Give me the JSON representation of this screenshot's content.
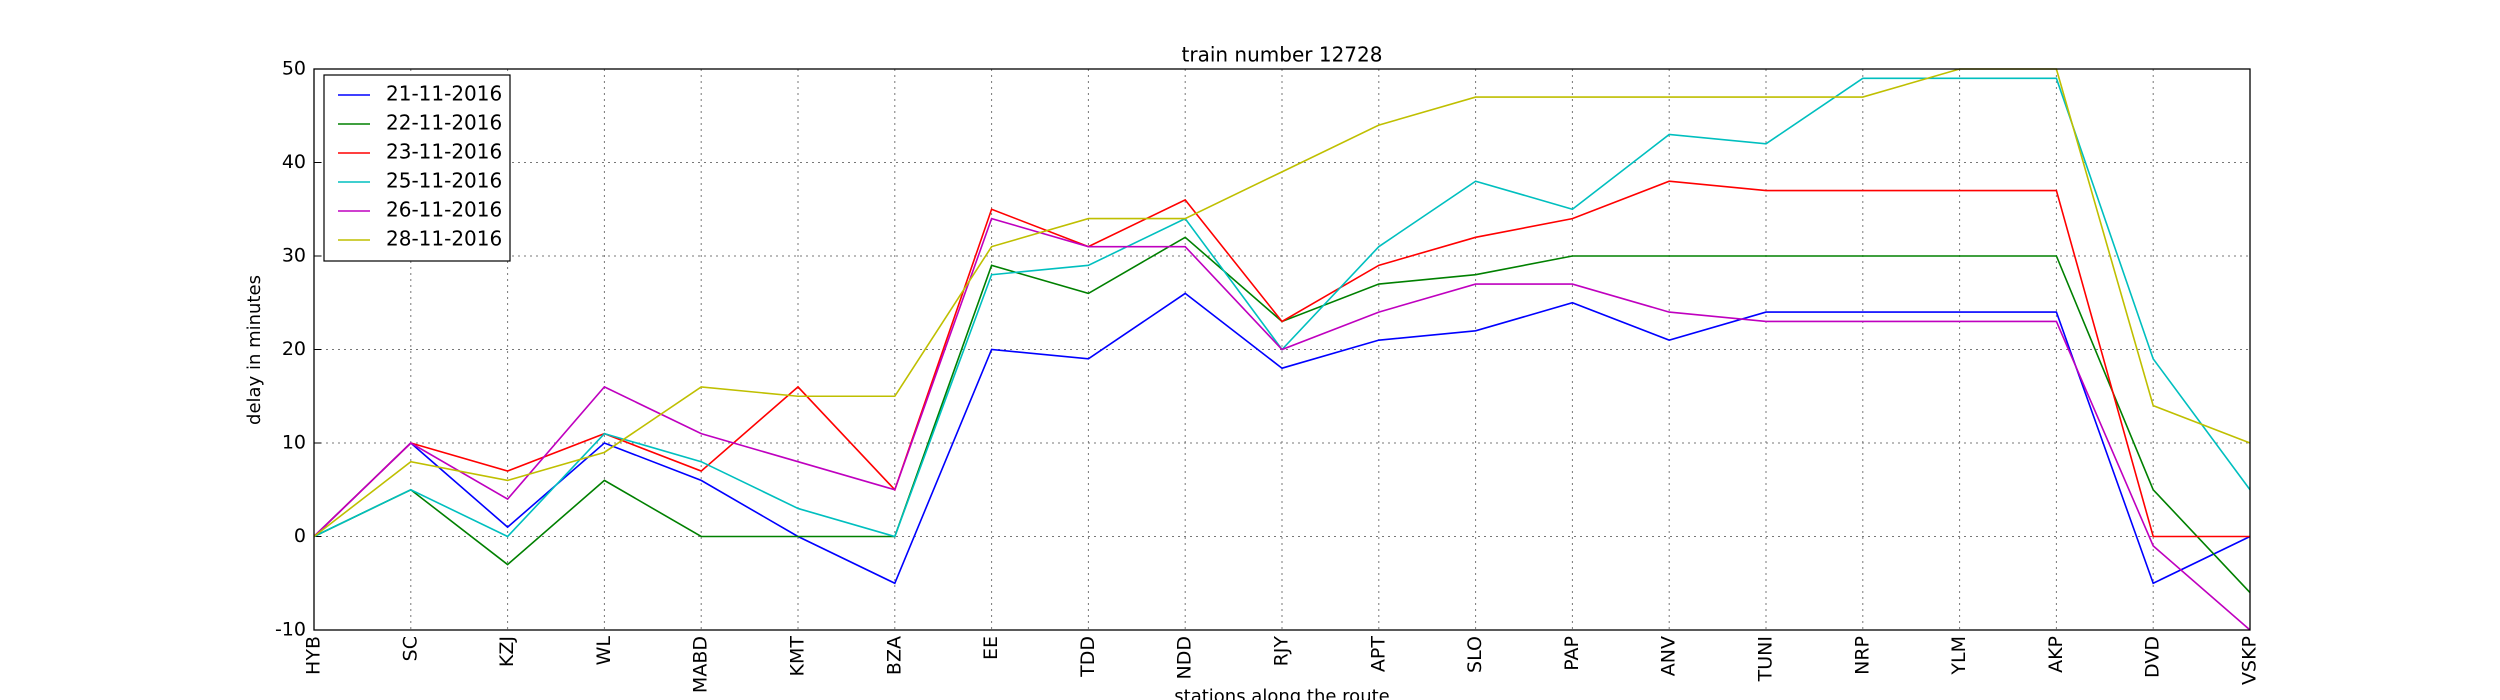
{
  "chart_data": {
    "type": "line",
    "title": "train number 12728",
    "x_label": "stations along the route",
    "y_label": "delay in minutes",
    "categories": [
      "HYB",
      "SC",
      "KZJ",
      "WL",
      "MABD",
      "KMT",
      "BZA",
      "EE",
      "TDD",
      "NDD",
      "RJY",
      "APT",
      "SLO",
      "PAP",
      "ANV",
      "TUNI",
      "NRP",
      "YLM",
      "AKP",
      "DVD",
      "VSKP"
    ],
    "series": [
      {
        "name": "21-11-2016",
        "color": "#0000ff",
        "values": [
          0,
          10,
          1,
          10,
          6,
          0,
          -5,
          20,
          19,
          26,
          18,
          21,
          22,
          25,
          21,
          24,
          24,
          24,
          24,
          -5,
          0
        ]
      },
      {
        "name": "22-11-2016",
        "color": "#008000",
        "values": [
          0,
          5,
          -3,
          6,
          0,
          0,
          0,
          29,
          26,
          32,
          23,
          27,
          28,
          30,
          30,
          30,
          30,
          30,
          30,
          5,
          -6
        ]
      },
      {
        "name": "23-11-2016",
        "color": "#ff0000",
        "values": [
          0,
          10,
          7,
          11,
          7,
          16,
          5,
          35,
          31,
          36,
          23,
          29,
          32,
          34,
          38,
          37,
          37,
          37,
          37,
          0,
          0
        ]
      },
      {
        "name": "25-11-2016",
        "color": "#00bfbf",
        "values": [
          0,
          5,
          0,
          11,
          8,
          3,
          0,
          28,
          29,
          34,
          20,
          31,
          38,
          35,
          43,
          42,
          49,
          49,
          49,
          19,
          5
        ]
      },
      {
        "name": "26-11-2016",
        "color": "#bf00bf",
        "values": [
          0,
          10,
          4,
          16,
          11,
          8,
          5,
          34,
          31,
          31,
          20,
          24,
          27,
          27,
          24,
          23,
          23,
          23,
          23,
          -1,
          -10
        ]
      },
      {
        "name": "28-11-2016",
        "color": "#bfbf00",
        "values": [
          0,
          8,
          6,
          9,
          16,
          15,
          15,
          31,
          34,
          34,
          39,
          44,
          47,
          47,
          47,
          47,
          47,
          50,
          50,
          14,
          10
        ]
      }
    ],
    "ylim": [
      -10,
      50
    ],
    "yticks": [
      -10,
      0,
      10,
      20,
      30,
      40,
      50
    ],
    "grid": true,
    "legend": "upper left"
  }
}
